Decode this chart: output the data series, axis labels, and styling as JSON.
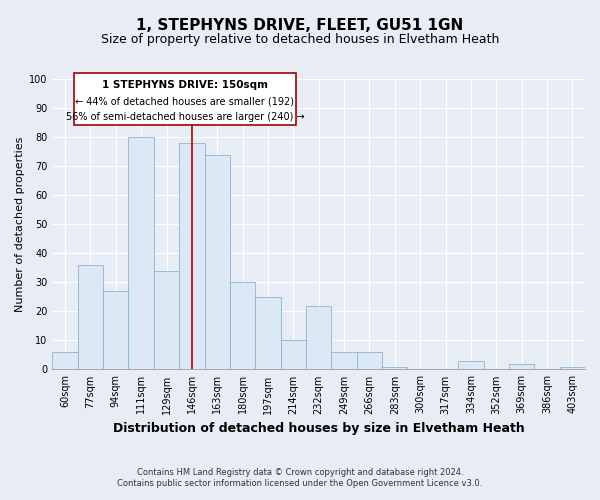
{
  "title": "1, STEPHYNS DRIVE, FLEET, GU51 1GN",
  "subtitle": "Size of property relative to detached houses in Elvetham Heath",
  "xlabel": "Distribution of detached houses by size in Elvetham Heath",
  "ylabel": "Number of detached properties",
  "bin_labels": [
    "60sqm",
    "77sqm",
    "94sqm",
    "111sqm",
    "129sqm",
    "146sqm",
    "163sqm",
    "180sqm",
    "197sqm",
    "214sqm",
    "232sqm",
    "249sqm",
    "266sqm",
    "283sqm",
    "300sqm",
    "317sqm",
    "334sqm",
    "352sqm",
    "369sqm",
    "386sqm",
    "403sqm"
  ],
  "bar_heights": [
    6,
    36,
    27,
    80,
    34,
    78,
    74,
    30,
    25,
    10,
    22,
    6,
    6,
    1,
    0,
    0,
    3,
    0,
    2,
    0,
    1
  ],
  "bar_color": "#dce8f3",
  "bar_edge_color": "#8ab4d4",
  "vline_color": "#aa0000",
  "annotation_title": "1 STEPHYNS DRIVE: 150sqm",
  "annotation_line1": "← 44% of detached houses are smaller (192)",
  "annotation_line2": "56% of semi-detached houses are larger (240) →",
  "annotation_box_facecolor": "#ffffff",
  "annotation_box_edgecolor": "#aa0000",
  "ylim": [
    0,
    100
  ],
  "yticks": [
    0,
    10,
    20,
    30,
    40,
    50,
    60,
    70,
    80,
    90,
    100
  ],
  "footnote1": "Contains HM Land Registry data © Crown copyright and database right 2024.",
  "footnote2": "Contains public sector information licensed under the Open Government Licence v3.0.",
  "bg_color": "#e8ecf4",
  "plot_bg_color": "#e8ecf4",
  "grid_color": "#ffffff",
  "title_fontsize": 11,
  "subtitle_fontsize": 9,
  "axis_label_fontsize": 8,
  "tick_fontsize": 7,
  "footnote_fontsize": 6,
  "vline_x": 5.5
}
